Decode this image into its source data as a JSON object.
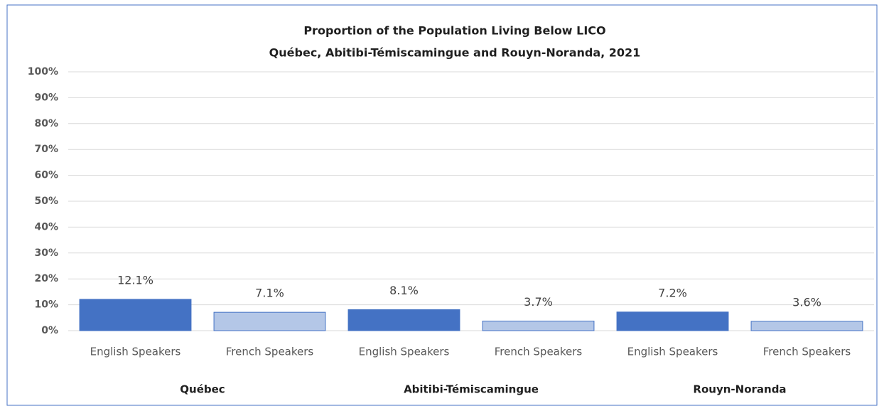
{
  "chart_data": {
    "type": "bar",
    "title": "Proportion of the Population Living Below LICO",
    "subtitle": "Québec, Abitibi-Témiscamingue  and Rouyn-Noranda,  2021",
    "categories": [
      "English Speakers",
      "French Speakers",
      "English Speakers",
      "French Speakers",
      "English Speakers",
      "French Speakers"
    ],
    "groups": [
      "Québec",
      "Abitibi-Témiscamingue",
      "Rouyn-Noranda"
    ],
    "values": [
      12.1,
      7.1,
      8.1,
      3.7,
      7.2,
      3.6
    ],
    "value_labels": [
      "12.1%",
      "7.1%",
      "8.1%",
      "3.7%",
      "7.2%",
      "3.6%"
    ],
    "colors": [
      "#4472c4",
      "#b4c7e7",
      "#4472c4",
      "#b4c7e7",
      "#4472c4",
      "#b4c7e7"
    ],
    "ylim": [
      0,
      100
    ],
    "yticks": [
      {
        "value": 0,
        "label": "0%"
      },
      {
        "value": 10,
        "label": "10%"
      },
      {
        "value": 20,
        "label": "20%"
      },
      {
        "value": 30,
        "label": "30%"
      },
      {
        "value": 40,
        "label": "40%"
      },
      {
        "value": 50,
        "label": "50%"
      },
      {
        "value": 60,
        "label": "60%"
      },
      {
        "value": 70,
        "label": "70%"
      },
      {
        "value": 80,
        "label": "80%"
      },
      {
        "value": 90,
        "label": "90%"
      },
      {
        "value": 100,
        "label": "100%"
      }
    ],
    "grid": true
  }
}
